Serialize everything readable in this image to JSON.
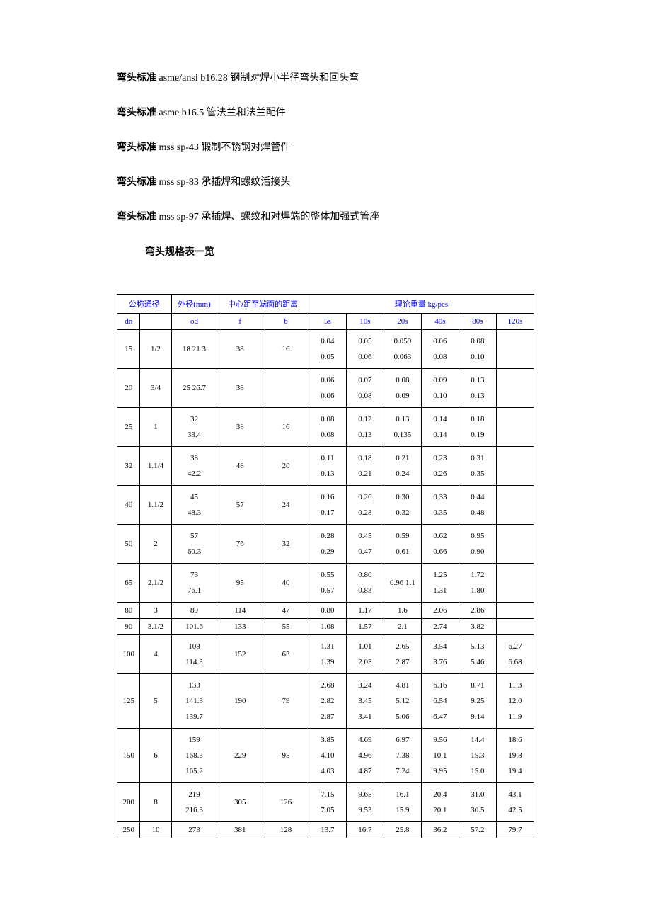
{
  "standards": [
    {
      "label": "弯头标准",
      "code": "asme/ansi b16.28",
      "desc": " 钢制对焊小半径弯头和回头弯"
    },
    {
      "label": "弯头标准",
      "code": "asme b16.5",
      "desc": " 管法兰和法兰配件"
    },
    {
      "label": "弯头标准",
      "code": "mss sp-43",
      "desc": " 锻制不锈钢对焊管件"
    },
    {
      "label": "弯头标准",
      "code": "mss sp-83",
      "desc": " 承插焊和螺纹活接头"
    },
    {
      "label": "弯头标准",
      "code": "mss sp-97",
      "desc": " 承插焊、螺纹和对焊端的整体加强式管座"
    }
  ],
  "section_title": "弯头规格表一览",
  "headers": {
    "nominal": "公称通径",
    "od": "外径(mm)",
    "distance": "中心距至端面的距离",
    "weight": "理论重量 kg/pcs",
    "dn": "dn",
    "od_sub": "od",
    "f": "f",
    "b": "b",
    "w5s": "5s",
    "w10s": "10s",
    "w20s": "20s",
    "w40s": "40s",
    "w80s": "80s",
    "w120s": "120s"
  },
  "rows": [
    {
      "dn": "15",
      "inch": "1/2",
      "od": "18 21.3",
      "f": "38",
      "b": "16",
      "w5s": "0.04\n0.05",
      "w10s": "0.05\n0.06",
      "w20s": "0.059\n0.063",
      "w40s": "0.06\n0.08",
      "w80s": "0.08\n0.10",
      "w120s": ""
    },
    {
      "dn": "20",
      "inch": "3/4",
      "od": "25 26.7",
      "f": "38",
      "b": "",
      "w5s": "0.06\n0.06",
      "w10s": "0.07\n0.08",
      "w20s": "0.08\n0.09",
      "w40s": "0.09\n0.10",
      "w80s": "0.13\n0.13",
      "w120s": ""
    },
    {
      "dn": "25",
      "inch": "1",
      "od": "32\n33.4",
      "f": "38",
      "b": "16",
      "w5s": "0.08\n0.08",
      "w10s": "0.12\n0.13",
      "w20s": "0.13\n0.135",
      "w40s": "0.14\n0.14",
      "w80s": "0.18\n0.19",
      "w120s": ""
    },
    {
      "dn": "32",
      "inch": "1.1/4",
      "od": "38\n42.2",
      "f": "48",
      "b": "20",
      "w5s": "0.11\n0.13",
      "w10s": "0.18\n0.21",
      "w20s": "0.21\n0.24",
      "w40s": "0.23\n0.26",
      "w80s": "0.31\n0.35",
      "w120s": ""
    },
    {
      "dn": "40",
      "inch": "1.1/2",
      "od": "45\n48.3",
      "f": "57",
      "b": "24",
      "w5s": "0.16\n0.17",
      "w10s": "0.26\n0.28",
      "w20s": "0.30\n0.32",
      "w40s": "0.33\n0.35",
      "w80s": "0.44\n0.48",
      "w120s": ""
    },
    {
      "dn": "50",
      "inch": "2",
      "od": "57\n60.3",
      "f": "76",
      "b": "32",
      "w5s": "0.28\n0.29",
      "w10s": "0.45\n0.47",
      "w20s": "0.59\n0.61",
      "w40s": "0.62\n0.66",
      "w80s": "0.95\n0.90",
      "w120s": ""
    },
    {
      "dn": "65",
      "inch": "2.1/2",
      "od": "73\n76.1",
      "f": "95",
      "b": "40",
      "w5s": "0.55\n0.57",
      "w10s": "0.80\n0.83",
      "w20s": "0.96 1.1",
      "w40s": "1.25\n1.31",
      "w80s": "1.72\n1.80",
      "w120s": ""
    },
    {
      "dn": "80",
      "inch": "3",
      "od": "89",
      "f": "114",
      "b": "47",
      "w5s": "0.80",
      "w10s": "1.17",
      "w20s": "1.6",
      "w40s": "2.06",
      "w80s": "2.86",
      "w120s": ""
    },
    {
      "dn": "90",
      "inch": "3.1/2",
      "od": "101.6",
      "f": "133",
      "b": "55",
      "w5s": "1.08",
      "w10s": "1.57",
      "w20s": "2.1",
      "w40s": "2.74",
      "w80s": "3.82",
      "w120s": ""
    },
    {
      "dn": "100",
      "inch": "4",
      "od": "108\n114.3",
      "f": "152",
      "b": "63",
      "w5s": "1.31\n1.39",
      "w10s": "1.01\n2.03",
      "w20s": "2.65\n2.87",
      "w40s": "3.54\n3.76",
      "w80s": "5.13\n5.46",
      "w120s": "6.27\n6.68"
    },
    {
      "dn": "125",
      "inch": "5",
      "od": "133\n141.3\n139.7",
      "f": "190",
      "b": "79",
      "w5s": "2.68\n2.82\n2.87",
      "w10s": "3.24\n3.45\n3.41",
      "w20s": "4.81\n5.12\n5.06",
      "w40s": "6.16\n6.54\n6.47",
      "w80s": "8.71\n9.25\n9.14",
      "w120s": "11.3\n12.0\n11.9"
    },
    {
      "dn": "150",
      "inch": "6",
      "od": "159\n168.3\n165.2",
      "f": "229",
      "b": "95",
      "w5s": "3.85\n4.10\n4.03",
      "w10s": "4.69\n4.96\n4.87",
      "w20s": "6.97\n7.38\n7.24",
      "w40s": "9.56\n10.1\n9.95",
      "w80s": "14.4\n15.3\n15.0",
      "w120s": "18.6\n19.8\n19.4"
    },
    {
      "dn": "200",
      "inch": "8",
      "od": "219\n216.3",
      "f": "305",
      "b": "126",
      "w5s": "7.15\n7.05",
      "w10s": "9.65\n9.53",
      "w20s": "16.1\n15.9",
      "w40s": "20.4\n20.1",
      "w80s": "31.0\n30.5",
      "w120s": "43.1\n42.5"
    },
    {
      "dn": "250",
      "inch": "10",
      "od": "273",
      "f": "381",
      "b": "128",
      "w5s": "13.7",
      "w10s": "16.7",
      "w20s": "25.8",
      "w40s": "36.2",
      "w80s": "57.2",
      "w120s": "79.7"
    }
  ]
}
